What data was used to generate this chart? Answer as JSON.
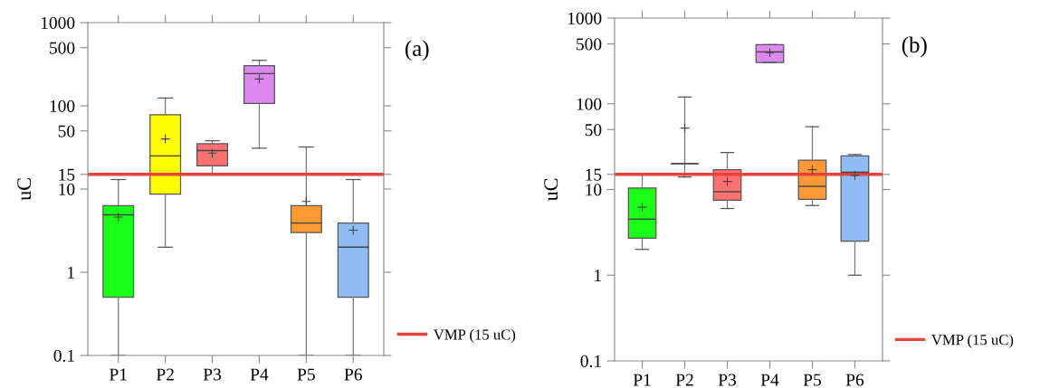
{
  "chart_data": [
    {
      "type": "box",
      "ylabel": "uC",
      "categories": [
        "P1",
        "P2",
        "P3",
        "P4",
        "P5",
        "P6"
      ],
      "colors": [
        "#1aff1a",
        "#ffff00",
        "#ff7070",
        "#dd88f0",
        "#ff9933",
        "#8fbcf5"
      ],
      "boxes": [
        {
          "low": 0.1,
          "q1": 0.5,
          "median": 4.9,
          "q3": 6.3,
          "high": 13,
          "mean": 4.6
        },
        {
          "low": 2,
          "q1": 8.7,
          "median": 25,
          "q3": 78,
          "high": 124,
          "mean": 40
        },
        {
          "low": 15,
          "q1": 19,
          "median": 29,
          "q3": 35,
          "high": 38,
          "mean": 27
        },
        {
          "low": 31,
          "q1": 107,
          "median": 244,
          "q3": 303,
          "high": 352,
          "mean": 210
        },
        {
          "low": 0.1,
          "q1": 3.0,
          "median": 3.9,
          "q3": 6.3,
          "high": 32,
          "mean": 7.1
        },
        {
          "low": 0.1,
          "q1": 0.5,
          "median": 2.0,
          "q3": 3.9,
          "high": 13,
          "mean": 3.2
        }
      ],
      "log": "y",
      "ylim": [
        0.1,
        1000
      ],
      "yticks": [
        0.1,
        1,
        10,
        15,
        50,
        100,
        500,
        1000
      ],
      "ref_lines": [
        {
          "axis": "y",
          "value": 15,
          "label": "VMP (15 uC)",
          "color": "#e8403a"
        }
      ],
      "legend": "bottom right",
      "grid": false,
      "marker": "cross",
      "annotations": [
        "(a)"
      ]
    },
    {
      "type": "box",
      "ylabel": "uC",
      "categories": [
        "P1",
        "P2",
        "P3",
        "P4",
        "P5",
        "P6"
      ],
      "colors": [
        "#1aff1a",
        null,
        "#ff7070",
        "#dd88f0",
        "#ff9933",
        "#8fbcf5"
      ],
      "boxes": [
        {
          "low": 2.0,
          "q1": 2.7,
          "median": 4.5,
          "q3": 10.4,
          "high": 15,
          "mean": 6.2
        },
        {
          "low": 14,
          "q1": 20,
          "median": 20,
          "q3": 20,
          "high": 120,
          "mean": 52
        },
        {
          "low": 6.0,
          "q1": 7.5,
          "median": 9.4,
          "q3": 17,
          "high": 27,
          "mean": 12.4
        },
        {
          "low": 303,
          "q1": 303,
          "median": 403,
          "q3": 490,
          "high": 490,
          "mean": 395
        },
        {
          "low": 6.5,
          "q1": 7.7,
          "median": 10.9,
          "q3": 22,
          "high": 54,
          "mean": 17
        },
        {
          "low": 1.0,
          "q1": 2.5,
          "median": 15.9,
          "q3": 24.6,
          "high": 25.6,
          "mean": 14.6
        }
      ],
      "log": "y",
      "ylim": [
        0.1,
        1000
      ],
      "yticks": [
        0.1,
        1,
        10,
        15,
        50,
        100,
        500,
        1000
      ],
      "ref_lines": [
        {
          "axis": "y",
          "value": 15,
          "label": "VMP (15 uC)",
          "color": "#e8403a"
        }
      ],
      "legend": "bottom right",
      "grid": false,
      "marker": "cross",
      "annotations": [
        "(b)"
      ]
    }
  ]
}
